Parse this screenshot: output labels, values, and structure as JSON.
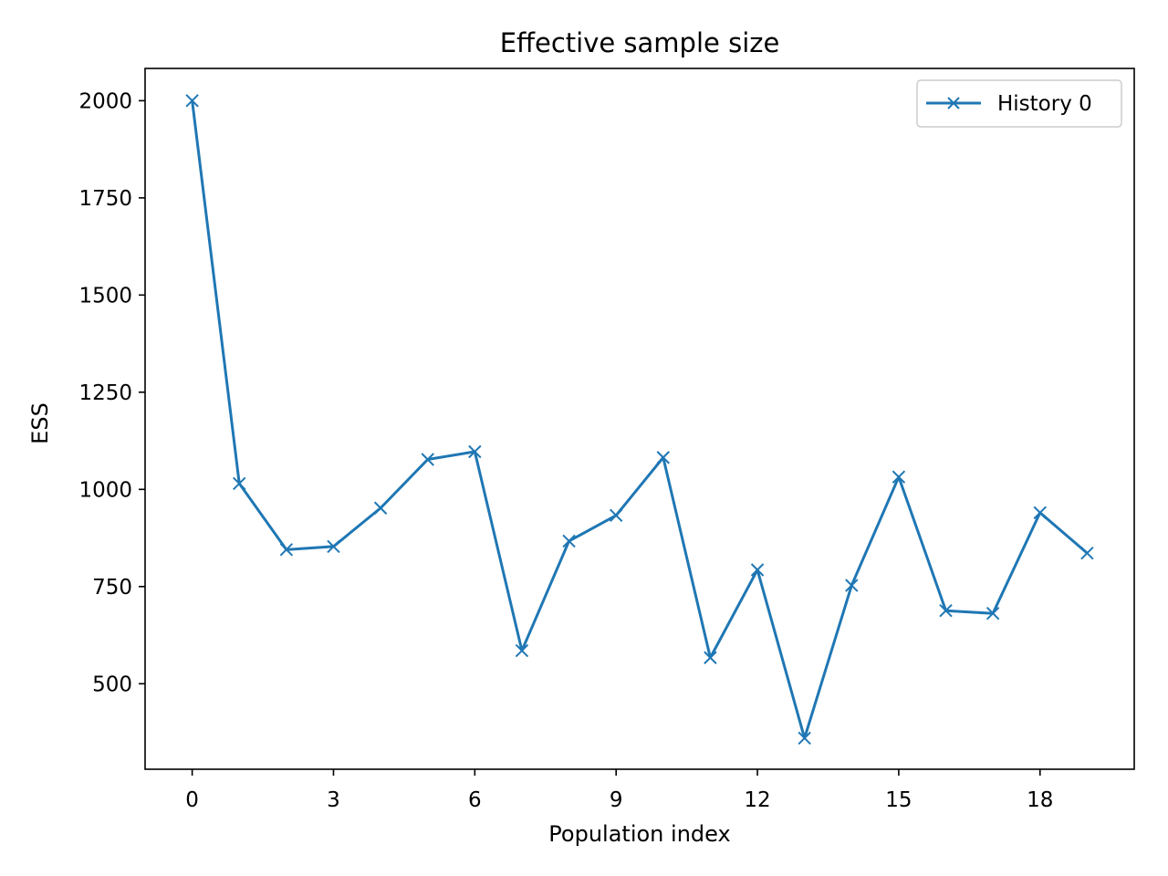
{
  "chart_data": {
    "type": "line",
    "title": "Effective sample size",
    "xlabel": "Population index",
    "ylabel": "ESS",
    "x": [
      0,
      1,
      2,
      3,
      4,
      5,
      6,
      7,
      8,
      9,
      10,
      11,
      12,
      13,
      14,
      15,
      16,
      17,
      18,
      19
    ],
    "series": [
      {
        "name": "History 0",
        "color": "#1f77b4",
        "marker": "x",
        "values": [
          2000,
          1015,
          845,
          853,
          952,
          1077,
          1097,
          585,
          867,
          933,
          1082,
          567,
          793,
          360,
          753,
          1032,
          688,
          681,
          940,
          836
        ]
      }
    ],
    "xlim": [
      -1,
      20
    ],
    "ylim": [
      280,
      2083
    ],
    "xticks": [
      0,
      3,
      6,
      9,
      12,
      15,
      18
    ],
    "yticks": [
      500,
      750,
      1000,
      1250,
      1500,
      1750,
      2000
    ],
    "grid": false,
    "legend_position": "top-right"
  }
}
